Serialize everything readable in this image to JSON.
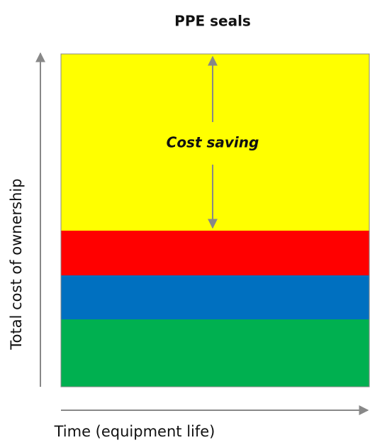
{
  "title": "PPE seals",
  "y_axis_label": "Total cost of ownership",
  "x_axis_label": "Time (equipment life)",
  "annotation": "Cost saving"
}
